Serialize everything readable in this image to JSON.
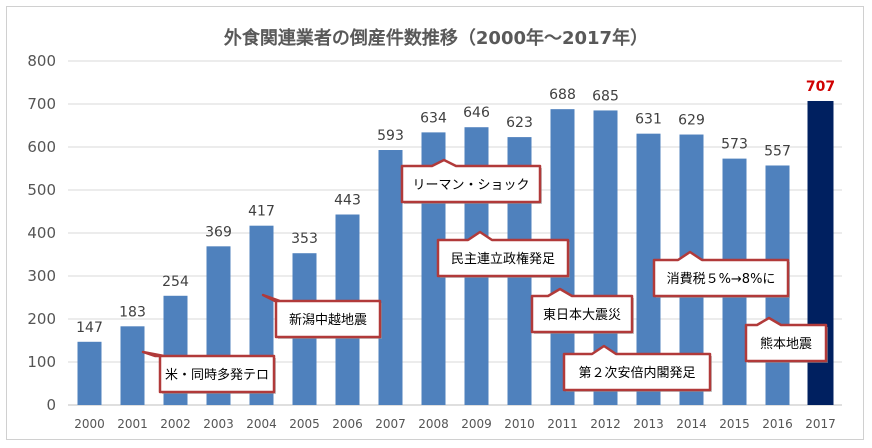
{
  "chart_data": {
    "type": "bar",
    "title": "外食関連業者の倒産件数推移（2000年〜2017年）",
    "categories": [
      "2000",
      "2001",
      "2002",
      "2003",
      "2004",
      "2005",
      "2006",
      "2007",
      "2008",
      "2009",
      "2010",
      "2011",
      "2012",
      "2013",
      "2014",
      "2015",
      "2016",
      "2017"
    ],
    "values": [
      147,
      183,
      254,
      369,
      417,
      353,
      443,
      593,
      634,
      646,
      623,
      688,
      685,
      631,
      629,
      573,
      557,
      707
    ],
    "highlight_index": 17,
    "ylim": [
      0,
      800
    ],
    "yticks": [
      0,
      100,
      200,
      300,
      400,
      500,
      600,
      700,
      800
    ],
    "grid": true,
    "colors": {
      "bar": "#4f81bd",
      "highlight_bar": "#002060",
      "highlight_label": "#d00000",
      "callout_border": "#b13a3a"
    },
    "annotations": [
      {
        "text": "米・同時多発テロ",
        "year": "2001",
        "tail": "up"
      },
      {
        "text": "新潟中越地震",
        "year": "2004",
        "tail": "up"
      },
      {
        "text": "リーマン・ショック",
        "year": "2008",
        "tail": "up"
      },
      {
        "text": "民主連立政権発足",
        "year": "2009",
        "tail": "up"
      },
      {
        "text": "東日本大震災",
        "year": "2011",
        "tail": "up"
      },
      {
        "text": "第２次安倍内閣発足",
        "year": "2012",
        "tail": "up"
      },
      {
        "text": "消費税５%→8%に",
        "year": "2014",
        "tail": "up"
      },
      {
        "text": "熊本地震",
        "year": "2016",
        "tail": "up"
      }
    ]
  }
}
